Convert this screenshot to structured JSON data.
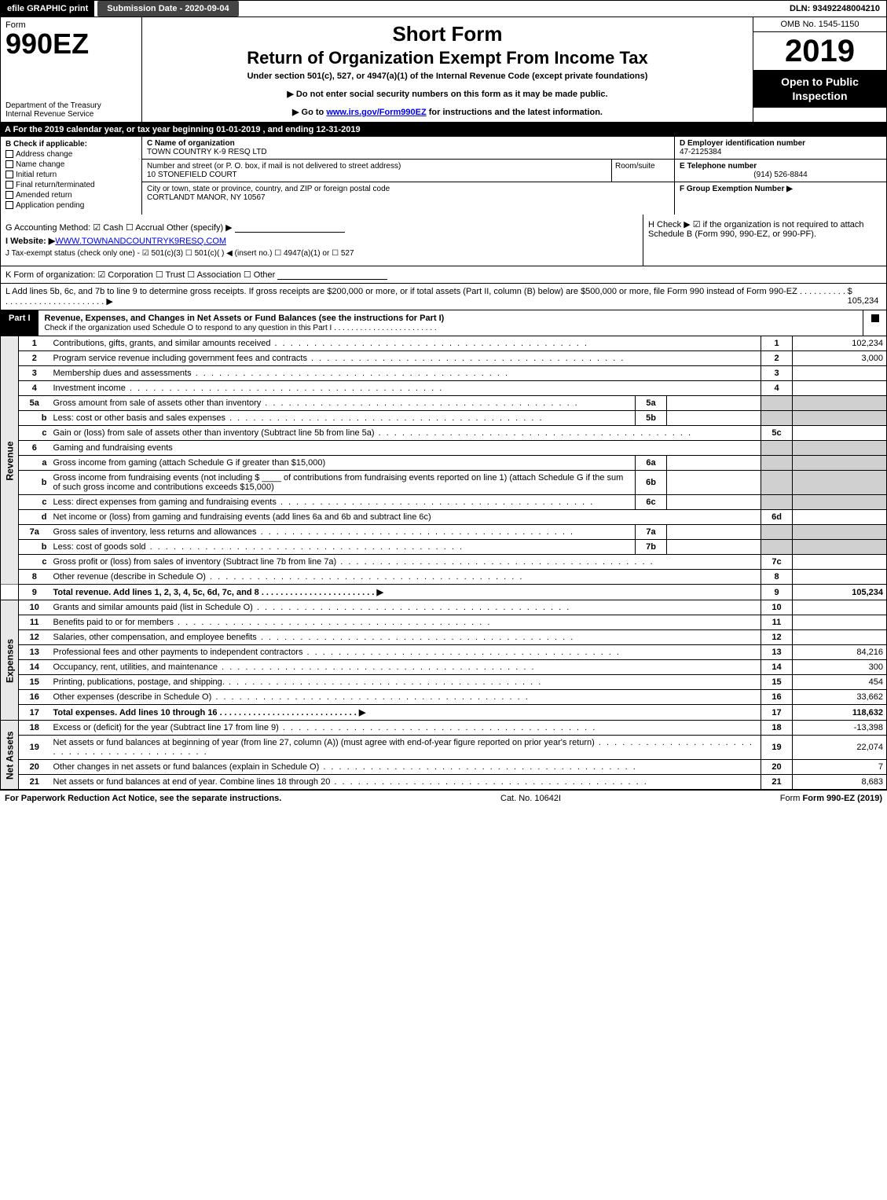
{
  "topbar": {
    "efile": "efile GRAPHIC print",
    "submission": "Submission Date - 2020-09-04",
    "dln": "DLN: 93492248004210"
  },
  "header": {
    "form_word": "Form",
    "form_number": "990EZ",
    "dept1": "Department of the Treasury",
    "dept2": "Internal Revenue Service",
    "short_form": "Short Form",
    "main_title": "Return of Organization Exempt From Income Tax",
    "subtitle": "Under section 501(c), 527, or 4947(a)(1) of the Internal Revenue Code (except private foundations)",
    "arrow1": "▶ Do not enter social security numbers on this form as it may be made public.",
    "arrow2_pre": "▶ Go to ",
    "arrow2_link": "www.irs.gov/Form990EZ",
    "arrow2_post": " for instructions and the latest information.",
    "omb": "OMB No. 1545-1150",
    "year": "2019",
    "open_public": "Open to Public Inspection"
  },
  "period": "A For the 2019 calendar year, or tax year beginning 01-01-2019 , and ending 12-31-2019",
  "section_b": {
    "title": "B  Check if applicable:",
    "items": [
      "Address change",
      "Name change",
      "Initial return",
      "Final return/terminated",
      "Amended return",
      "Application pending"
    ]
  },
  "section_c": {
    "name_label": "C Name of organization",
    "name": "TOWN COUNTRY K-9 RESQ LTD",
    "street_label": "Number and street (or P. O. box, if mail is not delivered to street address)",
    "street": "10 STONEFIELD COURT",
    "room_label": "Room/suite",
    "city_label": "City or town, state or province, country, and ZIP or foreign postal code",
    "city": "CORTLANDT MANOR, NY  10567"
  },
  "section_def": {
    "d_label": "D Employer identification number",
    "d_val": "47-2125384",
    "e_label": "E Telephone number",
    "e_val": "(914) 526-8844",
    "f_label": "F Group Exemption Number  ▶"
  },
  "section_gij": {
    "g": "G Accounting Method:   ☑ Cash  ☐ Accrual   Other (specify) ▶",
    "i_pre": "I Website: ▶",
    "i_link": "WWW.TOWNANDCOUNTRYK9RESQ.COM",
    "j": "J Tax-exempt status (check only one) -  ☑ 501(c)(3)  ☐  501(c)(  ) ◀ (insert no.)  ☐  4947(a)(1) or  ☐  527",
    "h": "H  Check ▶  ☑  if the organization is not required to attach Schedule B (Form 990, 990-EZ, or 990-PF)."
  },
  "k": "K Form of organization:   ☑ Corporation   ☐ Trust   ☐ Association   ☐ Other",
  "l_text": "L Add lines 5b, 6c, and 7b to line 9 to determine gross receipts. If gross receipts are $200,000 or more, or if total assets (Part II, column (B) below) are $500,000 or more, file Form 990 instead of Form 990-EZ . . . . . . . . . . . . . . . . . . . . . . . . . . . . . . .  ▶",
  "l_val": "$ 105,234",
  "part1": {
    "tab": "Part I",
    "title": "Revenue, Expenses, and Changes in Net Assets or Fund Balances (see the instructions for Part I)",
    "subtitle": "Check if the organization used Schedule O to respond to any question in this Part I . . . . . . . . . . . . . . . . . . . . . . . ."
  },
  "side_labels": {
    "revenue": "Revenue",
    "expenses": "Expenses",
    "netassets": "Net Assets"
  },
  "rows": {
    "r1": {
      "n": "1",
      "d": "Contributions, gifts, grants, and similar amounts received",
      "rn": "1",
      "rv": "102,234"
    },
    "r2": {
      "n": "2",
      "d": "Program service revenue including government fees and contracts",
      "rn": "2",
      "rv": "3,000"
    },
    "r3": {
      "n": "3",
      "d": "Membership dues and assessments",
      "rn": "3",
      "rv": ""
    },
    "r4": {
      "n": "4",
      "d": "Investment income",
      "rn": "4",
      "rv": ""
    },
    "r5a": {
      "n": "5a",
      "d": "Gross amount from sale of assets other than inventory",
      "in": "5a",
      "iv": ""
    },
    "r5b": {
      "n": "b",
      "d": "Less: cost or other basis and sales expenses",
      "in": "5b",
      "iv": ""
    },
    "r5c": {
      "n": "c",
      "d": "Gain or (loss) from sale of assets other than inventory (Subtract line 5b from line 5a)",
      "rn": "5c",
      "rv": ""
    },
    "r6": {
      "n": "6",
      "d": "Gaming and fundraising events"
    },
    "r6a": {
      "n": "a",
      "d": "Gross income from gaming (attach Schedule G if greater than $15,000)",
      "in": "6a",
      "iv": ""
    },
    "r6b": {
      "n": "b",
      "d": "Gross income from fundraising events (not including $ ____ of contributions from fundraising events reported on line 1) (attach Schedule G if the sum of such gross income and contributions exceeds $15,000)",
      "in": "6b",
      "iv": ""
    },
    "r6c": {
      "n": "c",
      "d": "Less: direct expenses from gaming and fundraising events",
      "in": "6c",
      "iv": ""
    },
    "r6d": {
      "n": "d",
      "d": "Net income or (loss) from gaming and fundraising events (add lines 6a and 6b and subtract line 6c)",
      "rn": "6d",
      "rv": ""
    },
    "r7a": {
      "n": "7a",
      "d": "Gross sales of inventory, less returns and allowances",
      "in": "7a",
      "iv": ""
    },
    "r7b": {
      "n": "b",
      "d": "Less: cost of goods sold",
      "in": "7b",
      "iv": ""
    },
    "r7c": {
      "n": "c",
      "d": "Gross profit or (loss) from sales of inventory (Subtract line 7b from line 7a)",
      "rn": "7c",
      "rv": ""
    },
    "r8": {
      "n": "8",
      "d": "Other revenue (describe in Schedule O)",
      "rn": "8",
      "rv": ""
    },
    "r9": {
      "n": "9",
      "d": "Total revenue. Add lines 1, 2, 3, 4, 5c, 6d, 7c, and 8   . . . . . . . . . . . . . . . . . . . . . . . .  ▶",
      "rn": "9",
      "rv": "105,234",
      "bold": true
    },
    "r10": {
      "n": "10",
      "d": "Grants and similar amounts paid (list in Schedule O)",
      "rn": "10",
      "rv": ""
    },
    "r11": {
      "n": "11",
      "d": "Benefits paid to or for members",
      "rn": "11",
      "rv": ""
    },
    "r12": {
      "n": "12",
      "d": "Salaries, other compensation, and employee benefits",
      "rn": "12",
      "rv": ""
    },
    "r13": {
      "n": "13",
      "d": "Professional fees and other payments to independent contractors",
      "rn": "13",
      "rv": "84,216"
    },
    "r14": {
      "n": "14",
      "d": "Occupancy, rent, utilities, and maintenance",
      "rn": "14",
      "rv": "300"
    },
    "r15": {
      "n": "15",
      "d": "Printing, publications, postage, and shipping.",
      "rn": "15",
      "rv": "454"
    },
    "r16": {
      "n": "16",
      "d": "Other expenses (describe in Schedule O)",
      "rn": "16",
      "rv": "33,662"
    },
    "r17": {
      "n": "17",
      "d": "Total expenses. Add lines 10 through 16     . . . . . . . . . . . . . . . . . . . . . . . . . . . . .  ▶",
      "rn": "17",
      "rv": "118,632",
      "bold": true
    },
    "r18": {
      "n": "18",
      "d": "Excess or (deficit) for the year (Subtract line 17 from line 9)",
      "rn": "18",
      "rv": "-13,398"
    },
    "r19": {
      "n": "19",
      "d": "Net assets or fund balances at beginning of year (from line 27, column (A)) (must agree with end-of-year figure reported on prior year's return)",
      "rn": "19",
      "rv": "22,074"
    },
    "r20": {
      "n": "20",
      "d": "Other changes in net assets or fund balances (explain in Schedule O)",
      "rn": "20",
      "rv": "7"
    },
    "r21": {
      "n": "21",
      "d": "Net assets or fund balances at end of year. Combine lines 18 through 20",
      "rn": "21",
      "rv": "8,683"
    }
  },
  "footer": {
    "left": "For Paperwork Reduction Act Notice, see the separate instructions.",
    "mid": "Cat. No. 10642I",
    "right": "Form 990-EZ (2019)"
  }
}
